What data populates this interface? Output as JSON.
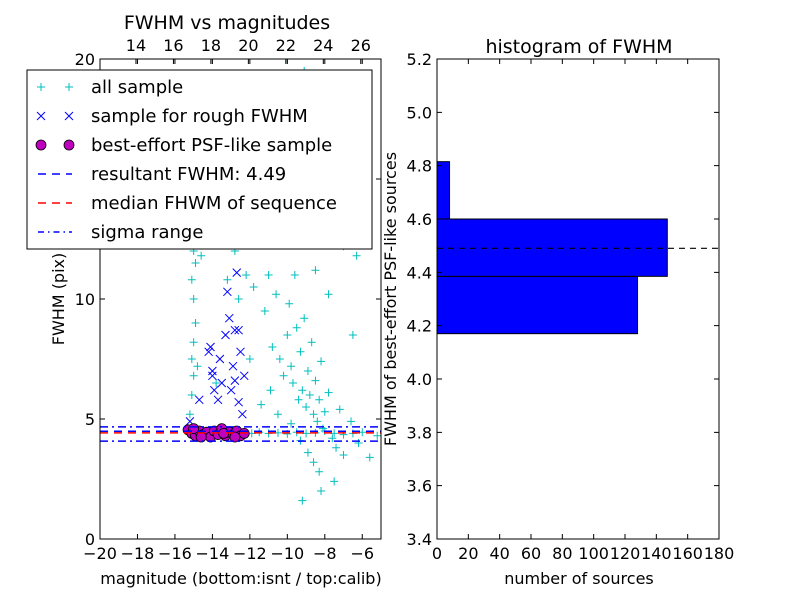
{
  "chart_data": [
    {
      "type": "scatter",
      "title": "FWHM vs magnitudes",
      "xlabel": "magnitude (bottom:isnt / top:calib)",
      "ylabel": "FWHM (pix)",
      "xlim": [
        -20,
        -5
      ],
      "ylim": [
        0,
        20
      ],
      "xticks": [
        -20,
        -18,
        -16,
        -14,
        -12,
        -10,
        -8,
        -6
      ],
      "xtick_labels": [
        "−20",
        "−18",
        "−16",
        "−14",
        "−12",
        "−10",
        "−8",
        "−6"
      ],
      "yticks": [
        0,
        5,
        10,
        15,
        20
      ],
      "ytick_labels": [
        "0",
        "5",
        "10",
        "15",
        "20"
      ],
      "top_axis": {
        "offset": 32.08,
        "ticks": [
          14,
          16,
          18,
          20,
          22,
          24,
          26
        ],
        "tick_labels": [
          "14",
          "16",
          "18",
          "20",
          "22",
          "24",
          "26"
        ]
      },
      "legend": {
        "placement": "top-left",
        "entries": [
          {
            "label": "all sample",
            "marker": "+",
            "color": "#00bfbf"
          },
          {
            "label": "sample for rough FWHM",
            "marker": "x",
            "color": "#0000ff"
          },
          {
            "label": "best-effort PSF-like sample",
            "marker": "o",
            "color": "#bf00bf"
          },
          {
            "label": "resultant FWHM: 4.49",
            "marker": "dashed",
            "color": "#0000ff"
          },
          {
            "label": "median FHWM of sequence",
            "marker": "dashed",
            "color": "#ff0000"
          },
          {
            "label": "sigma range",
            "marker": "dashdot",
            "color": "#0000ff"
          }
        ]
      },
      "hlines": [
        {
          "name": "resultant-fwhm",
          "y": 4.49,
          "color": "#0000ff",
          "style": "dashed"
        },
        {
          "name": "median-fwhm",
          "y": 4.42,
          "color": "#ff0000",
          "style": "dashed"
        },
        {
          "name": "sigma-upper",
          "y": 4.67,
          "color": "#0000ff",
          "style": "dashdot"
        },
        {
          "name": "sigma-lower",
          "y": 4.08,
          "color": "#0000ff",
          "style": "dashdot"
        }
      ],
      "series": [
        {
          "name": "all sample",
          "marker": "+",
          "color": "#00bfbf",
          "points": [
            [
              -15.2,
              5.2
            ],
            [
              -15.1,
              6
            ],
            [
              -15.0,
              6.8
            ],
            [
              -15.1,
              7.5
            ],
            [
              -15.0,
              8.2
            ],
            [
              -14.9,
              9
            ],
            [
              -15.0,
              10
            ],
            [
              -15.1,
              10.8
            ],
            [
              -14.9,
              11.5
            ],
            [
              -15.0,
              12
            ],
            [
              -14.6,
              11.8
            ],
            [
              -14.8,
              7.2
            ],
            [
              -13.6,
              12.5
            ],
            [
              -13.2,
              10.8
            ],
            [
              -12.8,
              12
            ],
            [
              -12.6,
              10
            ],
            [
              -12.2,
              11
            ],
            [
              -11.8,
              10.5
            ],
            [
              -11.5,
              12.5
            ],
            [
              -11.2,
              9.5
            ],
            [
              -11.0,
              11
            ],
            [
              -10.8,
              8
            ],
            [
              -10.6,
              10.2
            ],
            [
              -10.4,
              7.5
            ],
            [
              -10.2,
              6.8
            ],
            [
              -10.0,
              8.5
            ],
            [
              -9.9,
              9.8
            ],
            [
              -9.8,
              7.2
            ],
            [
              -9.7,
              6.5
            ],
            [
              -9.6,
              11
            ],
            [
              -9.5,
              8.8
            ],
            [
              -9.4,
              5.8
            ],
            [
              -9.3,
              7.8
            ],
            [
              -9.2,
              6.2
            ],
            [
              -9.1,
              9.2
            ],
            [
              -9.0,
              5.5
            ],
            [
              -8.9,
              7
            ],
            [
              -8.8,
              6
            ],
            [
              -8.7,
              8.2
            ],
            [
              -8.6,
              5.2
            ],
            [
              -8.5,
              6.6
            ],
            [
              -8.4,
              4.9
            ],
            [
              -8.3,
              5.8
            ],
            [
              -8.2,
              7.4
            ],
            [
              -8.1,
              4.6
            ],
            [
              -8.0,
              5.3
            ],
            [
              -7.8,
              6.1
            ],
            [
              -7.6,
              4.2
            ],
            [
              -7.4,
              3.8
            ],
            [
              -7.2,
              5.4
            ],
            [
              -7.0,
              3.5
            ],
            [
              -6.6,
              4.9
            ],
            [
              -6.2,
              4.0
            ],
            [
              -5.6,
              3.4
            ],
            [
              -10.5,
              5.2
            ],
            [
              -10.9,
              6.2
            ],
            [
              -11.4,
              5.6
            ],
            [
              -9.8,
              4.8
            ],
            [
              -9.3,
              4.1
            ],
            [
              -8.9,
              3.6
            ],
            [
              -8.3,
              2.8
            ],
            [
              -8.6,
              3.2
            ],
            [
              -7.5,
              2.4
            ],
            [
              -9.2,
              1.6
            ],
            [
              -8.2,
              2.0
            ],
            [
              -10.2,
              12.8
            ],
            [
              -9.8,
              13.5
            ],
            [
              -9.4,
              14.5
            ],
            [
              -9.9,
              16
            ],
            [
              -9.5,
              18.5
            ],
            [
              -9.1,
              19.5
            ],
            [
              -10.0,
              20
            ],
            [
              -11.9,
              4.4
            ],
            [
              -11.5,
              4.45
            ],
            [
              -11.0,
              4.4
            ],
            [
              -10.5,
              4.42
            ],
            [
              -10.0,
              4.38
            ],
            [
              -9.5,
              4.45
            ],
            [
              -9.0,
              4.4
            ],
            [
              -8.5,
              4.42
            ],
            [
              -8.0,
              4.5
            ],
            [
              -7.5,
              4.4
            ],
            [
              -7.0,
              4.35
            ],
            [
              -6.5,
              4.4
            ],
            [
              -6.0,
              4.45
            ],
            [
              -5.2,
              4.3
            ],
            [
              -7.0,
              12.2
            ],
            [
              -6.3,
              11.8
            ],
            [
              -8.5,
              11.2
            ],
            [
              -7.8,
              10.2
            ],
            [
              -6.5,
              8.5
            ],
            [
              -12.0,
              7.5
            ],
            [
              -13.8,
              6.5
            ],
            [
              -14.2,
              12.8
            ]
          ]
        },
        {
          "name": "sample for rough FWHM",
          "marker": "x",
          "color": "#0000ff",
          "points": [
            [
              -15.2,
              4.9
            ],
            [
              -14.7,
              5.8
            ],
            [
              -14.2,
              7.8
            ],
            [
              -14.1,
              8.0
            ],
            [
              -14.0,
              6.8
            ],
            [
              -13.9,
              6.2
            ],
            [
              -13.6,
              7.5
            ],
            [
              -13.5,
              6.5
            ],
            [
              -13.3,
              8.5
            ],
            [
              -13.2,
              10.3
            ],
            [
              -13.0,
              6.2
            ],
            [
              -12.9,
              7.2
            ],
            [
              -12.8,
              6.6
            ],
            [
              -12.7,
              11.1
            ],
            [
              -12.6,
              5.7
            ],
            [
              -12.6,
              8.7
            ],
            [
              -12.5,
              7.8
            ],
            [
              -12.4,
              5.2
            ],
            [
              -12.3,
              6.8
            ],
            [
              -13.1,
              9.2
            ],
            [
              -12.8,
              8.7
            ],
            [
              -14.0,
              7.0
            ],
            [
              -13.7,
              5.8
            ]
          ]
        },
        {
          "name": "best-effort PSF-like sample",
          "marker": "o",
          "color": "#bf00bf",
          "points": [
            [
              -15.3,
              4.55
            ],
            [
              -15.1,
              4.4
            ],
            [
              -14.9,
              4.3
            ],
            [
              -14.7,
              4.5
            ],
            [
              -14.5,
              4.35
            ],
            [
              -14.3,
              4.45
            ],
            [
              -14.1,
              4.25
            ],
            [
              -13.9,
              4.5
            ],
            [
              -13.7,
              4.35
            ],
            [
              -13.5,
              4.6
            ],
            [
              -13.3,
              4.3
            ],
            [
              -13.1,
              4.45
            ],
            [
              -12.9,
              4.35
            ],
            [
              -12.7,
              4.5
            ],
            [
              -12.5,
              4.3
            ],
            [
              -12.3,
              4.4
            ],
            [
              -14.6,
              4.25
            ],
            [
              -13.4,
              4.4
            ],
            [
              -12.8,
              4.25
            ],
            [
              -15.0,
              4.6
            ]
          ]
        }
      ]
    },
    {
      "type": "bar",
      "orientation": "horizontal",
      "title": "histogram of FWHM",
      "xlabel": "number of sources",
      "ylabel": "FWHM of best-effort PSF-like sources",
      "xlim": [
        0,
        180
      ],
      "ylim": [
        3.4,
        5.2
      ],
      "xticks": [
        0,
        20,
        40,
        60,
        80,
        100,
        120,
        140,
        160,
        180
      ],
      "xtick_labels": [
        "0",
        "20",
        "40",
        "60",
        "80",
        "100",
        "120",
        "140",
        "160",
        "180"
      ],
      "yticks": [
        3.4,
        3.6,
        3.8,
        4.0,
        4.2,
        4.4,
        4.6,
        4.8,
        5.0,
        5.2
      ],
      "ytick_labels": [
        "3.4",
        "3.6",
        "3.8",
        "4.0",
        "4.2",
        "4.4",
        "4.6",
        "4.8",
        "5.0",
        "5.2"
      ],
      "bins": [
        [
          4.17,
          4.385
        ],
        [
          4.385,
          4.6
        ],
        [
          4.6,
          4.815
        ]
      ],
      "values": [
        128,
        147,
        8
      ],
      "color": "#0000ff",
      "hline": {
        "y": 4.49,
        "style": "dashed",
        "color": "#000000"
      }
    }
  ]
}
